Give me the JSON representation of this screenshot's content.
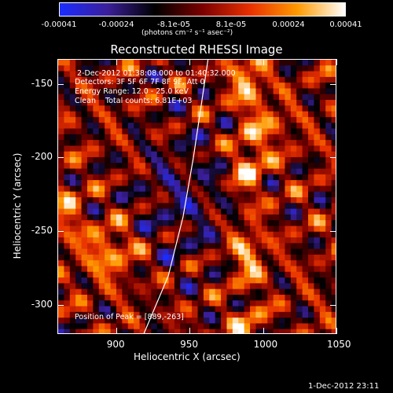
{
  "chart_data": {
    "type": "heatmap",
    "title": "Reconstructed RHESSI Image",
    "xlabel": "Heliocentric X (arcsec)",
    "ylabel": "Heliocentric Y (arcsec)",
    "xlim": [
      860,
      1050
    ],
    "ylim": [
      -320,
      -133
    ],
    "x_ticks": [
      "900",
      "950",
      "1000",
      "1050"
    ],
    "y_ticks": [
      "-150",
      "-200",
      "-250",
      "-300"
    ],
    "x_tick_values": [
      900,
      950,
      1000,
      1050
    ],
    "y_tick_values": [
      -150,
      -200,
      -250,
      -300
    ],
    "colorbar": {
      "range": [
        -0.00041,
        0.00041
      ],
      "tick_labels": [
        "-0.00041",
        "-0.00024",
        "-8.1e-05",
        "8.1e-05",
        "0.00024",
        "0.00041"
      ],
      "unit_label": "(photons cm⁻² s⁻¹ asec⁻²)",
      "colormap": [
        "#1a2cff",
        "#3b1f9a",
        "#000000",
        "#7a0000",
        "#e83000",
        "#ff9a00",
        "#ffffff"
      ]
    },
    "info_lines": [
      " 2-Dec-2012 01:38:08.000 to 01:40:32.000",
      "Detectors: 3F 5F 6F 7F 8F 9F, Att 0",
      "Energy Range: 12.0 - 25.0 keV",
      "Clean    Total counts: 6.81E+03"
    ],
    "peak_label": "Position of Peak = [889,-263]",
    "peak": [
      889,
      -263
    ],
    "limb_curve": [
      [
        918,
        -320
      ],
      [
        935,
        -280
      ],
      [
        945,
        -240
      ],
      [
        952,
        -200
      ],
      [
        958,
        -160
      ],
      [
        962,
        -133
      ]
    ]
  },
  "timestamp": "1-Dec-2012 23:11"
}
